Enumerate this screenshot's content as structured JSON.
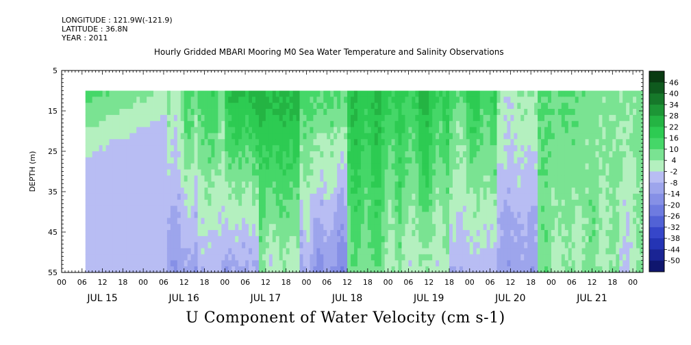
{
  "header": {
    "longitude": "LONGITUDE : 121.9W(-121.9)",
    "latitude": "LATITUDE : 36.8N",
    "year": "YEAR : 2011",
    "title": "Hourly Gridded MBARI Mooring M0 Sea Water Temperature and Salinity Observations"
  },
  "footer": {
    "variable_title": "U Component of Water Velocity (cm s-1)"
  },
  "chart_data": {
    "type": "heatmap",
    "title": "Hourly Gridded MBARI Mooring M0 Sea Water Temperature and Salinity Observations",
    "variable": "U Component of Water Velocity (cm s-1)",
    "ylabel": "DEPTH (m)",
    "y_ticks": [
      5,
      15,
      25,
      35,
      45,
      55
    ],
    "y_range": [
      5,
      55
    ],
    "y_inverted": true,
    "data_depth_range": [
      10,
      55
    ],
    "x_hour_ticks": [
      "00",
      "06",
      "12",
      "18",
      "00",
      "06",
      "12",
      "18",
      "00",
      "06",
      "12",
      "18",
      "00",
      "06",
      "12",
      "18",
      "00",
      "06",
      "12",
      "18",
      "00",
      "06",
      "12",
      "18",
      "00",
      "06",
      "12",
      "18",
      "00"
    ],
    "x_day_labels": [
      "JUL 15",
      "JUL 16",
      "JUL 17",
      "JUL 18",
      "JUL 19",
      "JUL 20",
      "JUL 21"
    ],
    "x_range_hours": [
      0,
      171
    ],
    "data_start_hour": 7,
    "data_end_hour": 171,
    "colorbar": {
      "ticks": [
        46,
        40,
        34,
        28,
        22,
        16,
        10,
        4,
        -2,
        -8,
        -14,
        -20,
        -26,
        -32,
        -38,
        -44,
        -50
      ],
      "colors": [
        "#0a3b12",
        "#0f5a1e",
        "#16782a",
        "#1d9636",
        "#24b443",
        "#2dcb52",
        "#45d768",
        "#7ae392",
        "#b4f0bf",
        "#b8bdf3",
        "#9da5ec",
        "#8690e6",
        "#6e7be0",
        "#5262d6",
        "#3646c9",
        "#2434b5",
        "#1a2494",
        "#0f166e"
      ]
    },
    "field_bands": [
      {
        "from_hour": 7,
        "to_hour": 31,
        "upper_value": 12,
        "lower_value": -4
      },
      {
        "from_hour": 31,
        "to_hour": 40,
        "upper_value": 7,
        "lower_value": -12
      },
      {
        "from_hour": 40,
        "to_hour": 48,
        "upper_value": 14,
        "lower_value": -6
      },
      {
        "from_hour": 48,
        "to_hour": 58,
        "upper_value": 22,
        "lower_value": -10
      },
      {
        "from_hour": 58,
        "to_hour": 70,
        "upper_value": 24,
        "lower_value": 2
      },
      {
        "from_hour": 70,
        "to_hour": 84,
        "upper_value": 12,
        "lower_value": -14
      },
      {
        "from_hour": 84,
        "to_hour": 100,
        "upper_value": 20,
        "lower_value": 6
      },
      {
        "from_hour": 100,
        "to_hour": 114,
        "upper_value": 18,
        "lower_value": 0
      },
      {
        "from_hour": 114,
        "to_hour": 128,
        "upper_value": 14,
        "lower_value": -6
      },
      {
        "from_hour": 128,
        "to_hour": 140,
        "upper_value": 4,
        "lower_value": -12
      },
      {
        "from_hour": 140,
        "to_hour": 154,
        "upper_value": 10,
        "lower_value": 4
      },
      {
        "from_hour": 154,
        "to_hour": 171,
        "upper_value": 6,
        "lower_value": 2
      }
    ]
  }
}
